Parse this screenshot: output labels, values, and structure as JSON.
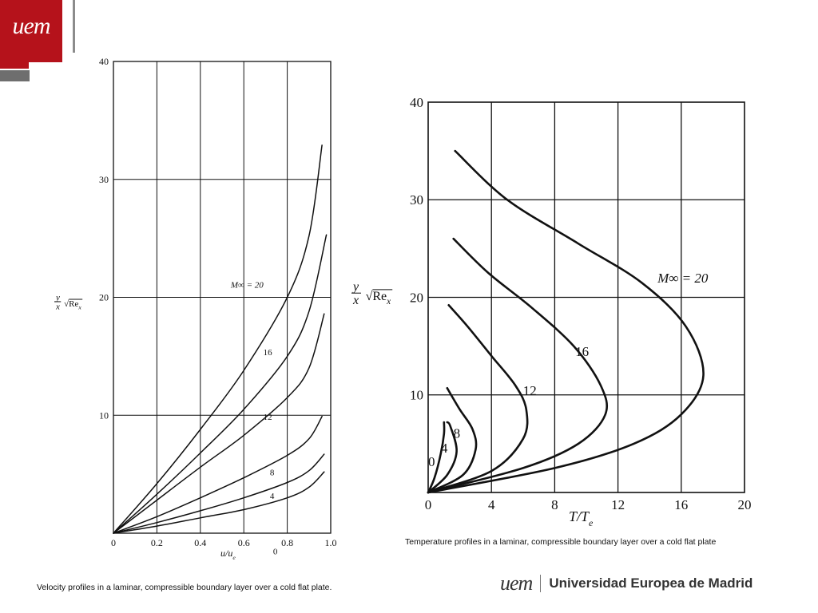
{
  "brand": {
    "logo_mark": "uem",
    "footer_mark": "uem",
    "footer_name": "Universidad Europea de Madrid",
    "accent_color": "#b5121b",
    "grey_color": "#6e6e6e"
  },
  "captions": {
    "velocity": "Velocity profiles in a laminar, compressible boundary layer over a cold flat plate.",
    "temperature": "Temperature profiles in a laminar, compressible boundary layer over a cold flat plate"
  },
  "chart_data": [
    {
      "type": "line",
      "title": "",
      "xlabel": "u/u_e",
      "ylabel": "y/x √Re_x",
      "xlim": [
        0,
        1.0
      ],
      "ylim": [
        0,
        40
      ],
      "grid": true,
      "x_ticks": [
        "0",
        "0.2",
        "0.4",
        "0.6",
        "0.8",
        "1.0"
      ],
      "y_ticks": [
        "10",
        "20",
        "30",
        "40"
      ],
      "series": [
        {
          "name": "0",
          "label": "0",
          "points": [
            [
              0,
              0
            ],
            [
              0.2,
              0.6
            ],
            [
              0.4,
              1.3
            ],
            [
              0.6,
              2.0
            ],
            [
              0.8,
              3.0
            ],
            [
              0.9,
              3.9
            ],
            [
              0.97,
              5.2
            ]
          ]
        },
        {
          "name": "4",
          "label": "4",
          "points": [
            [
              0,
              0
            ],
            [
              0.2,
              0.9
            ],
            [
              0.4,
              1.9
            ],
            [
              0.6,
              3.0
            ],
            [
              0.8,
              4.3
            ],
            [
              0.9,
              5.3
            ],
            [
              0.97,
              6.7
            ]
          ]
        },
        {
          "name": "8",
          "label": "8",
          "points": [
            [
              0,
              0
            ],
            [
              0.2,
              1.4
            ],
            [
              0.4,
              3.0
            ],
            [
              0.6,
              4.7
            ],
            [
              0.8,
              6.6
            ],
            [
              0.9,
              8.0
            ],
            [
              0.96,
              9.9
            ]
          ]
        },
        {
          "name": "12",
          "label": "12",
          "points": [
            [
              0,
              0
            ],
            [
              0.2,
              2.8
            ],
            [
              0.4,
              5.6
            ],
            [
              0.6,
              8.3
            ],
            [
              0.8,
              11.5
            ],
            [
              0.9,
              14.0
            ],
            [
              0.97,
              18.6
            ]
          ]
        },
        {
          "name": "16",
          "label": "16",
          "points": [
            [
              0,
              0
            ],
            [
              0.2,
              3.3
            ],
            [
              0.4,
              6.8
            ],
            [
              0.6,
              10.5
            ],
            [
              0.8,
              15.0
            ],
            [
              0.9,
              18.8
            ],
            [
              0.98,
              25.3
            ]
          ]
        },
        {
          "name": "20",
          "label": "M∞ = 20",
          "points": [
            [
              0,
              0
            ],
            [
              0.2,
              4.2
            ],
            [
              0.4,
              8.8
            ],
            [
              0.6,
              13.8
            ],
            [
              0.8,
              20.0
            ],
            [
              0.9,
              25.2
            ],
            [
              0.96,
              32.9
            ]
          ]
        }
      ]
    },
    {
      "type": "line",
      "title": "",
      "xlabel": "T/T_e",
      "ylabel": "y/x √Re_x",
      "xlim": [
        0,
        20
      ],
      "ylim": [
        0,
        40
      ],
      "grid": true,
      "x_ticks": [
        "0",
        "4",
        "8",
        "12",
        "16",
        "20"
      ],
      "y_ticks": [
        "10",
        "20",
        "30",
        "40"
      ],
      "series": [
        {
          "name": "0",
          "label": "0",
          "points": [
            [
              0,
              0
            ],
            [
              0.4,
              1.5
            ],
            [
              0.8,
              4.0
            ],
            [
              1.0,
              6.0
            ],
            [
              1.0,
              7.2
            ]
          ]
        },
        {
          "name": "4",
          "label": "4",
          "points": [
            [
              0,
              0
            ],
            [
              1.2,
              1.8
            ],
            [
              1.8,
              4.2
            ],
            [
              1.4,
              6.8
            ],
            [
              1.2,
              7.2
            ]
          ]
        },
        {
          "name": "8",
          "label": "8",
          "points": [
            [
              0,
              0
            ],
            [
              2.2,
              1.8
            ],
            [
              3.0,
              4.4
            ],
            [
              2.8,
              6.5
            ],
            [
              2.0,
              8.5
            ],
            [
              1.2,
              10.7
            ]
          ]
        },
        {
          "name": "12",
          "label": "12",
          "points": [
            [
              0,
              0
            ],
            [
              4.0,
              2.2
            ],
            [
              6.0,
              5.5
            ],
            [
              6.2,
              8.5
            ],
            [
              5.5,
              11.0
            ],
            [
              4.0,
              14.0
            ],
            [
              2.5,
              17.0
            ],
            [
              1.3,
              19.2
            ]
          ]
        },
        {
          "name": "16",
          "label": "16",
          "points": [
            [
              0,
              0
            ],
            [
              6.0,
              2.5
            ],
            [
              9.5,
              5.0
            ],
            [
              11.2,
              8.0
            ],
            [
              10.9,
              11.0
            ],
            [
              9.2,
              15.0
            ],
            [
              6.5,
              19.0
            ],
            [
              3.8,
              22.5
            ],
            [
              1.6,
              26.0
            ]
          ]
        },
        {
          "name": "20",
          "label": "M∞ = 20",
          "points": [
            [
              0,
              0
            ],
            [
              8.0,
              2.5
            ],
            [
              13.0,
              5.0
            ],
            [
              16.0,
              8.0
            ],
            [
              17.4,
              12.0
            ],
            [
              16.3,
              17.0
            ],
            [
              13.5,
              21.5
            ],
            [
              9.5,
              25.5
            ],
            [
              5.0,
              30.0
            ],
            [
              1.7,
              35.0
            ]
          ]
        }
      ]
    }
  ]
}
